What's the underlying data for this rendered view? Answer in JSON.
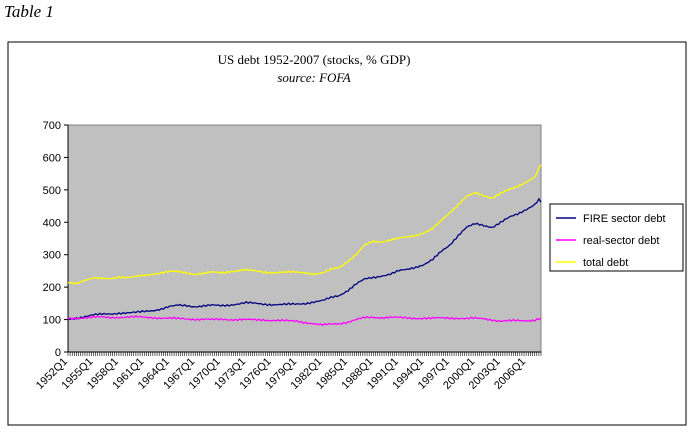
{
  "caption": "Table 1",
  "chart_data": {
    "type": "line",
    "title": "US debt 1952-2007 (stocks, % GDP)",
    "subtitle": "source: FOFA",
    "xlabel": "",
    "ylabel": "",
    "ylim": [
      0,
      700
    ],
    "yticks": [
      0,
      100,
      200,
      300,
      400,
      500,
      600,
      700
    ],
    "xlim": [
      1952.0,
      2007.75
    ],
    "xtick_labels": [
      "1952Q1",
      "1955Q1",
      "1958Q1",
      "1961Q1",
      "1964Q1",
      "1967Q1",
      "1970Q1",
      "1973Q1",
      "1976Q1",
      "1979Q1",
      "1982Q1",
      "1985Q1",
      "1988Q1",
      "1991Q1",
      "1994Q1",
      "1997Q1",
      "2000Q1",
      "2003Q1",
      "2006Q1"
    ],
    "grid": false,
    "legend_position": "right",
    "plot_background": "#c0c0c0",
    "series": [
      {
        "name": "FIRE sector debt",
        "color": "#000080",
        "x": [
          1952,
          1953,
          1954,
          1955,
          1956,
          1957,
          1958,
          1959,
          1960,
          1961,
          1962,
          1963,
          1964,
          1965,
          1966,
          1967,
          1968,
          1969,
          1970,
          1971,
          1972,
          1973,
          1974,
          1975,
          1976,
          1977,
          1978,
          1979,
          1980,
          1981,
          1982,
          1983,
          1984,
          1985,
          1986,
          1987,
          1988,
          1989,
          1990,
          1991,
          1992,
          1993,
          1994,
          1995,
          1996,
          1997,
          1998,
          1999,
          2000,
          2001,
          2002,
          2003,
          2004,
          2005,
          2006,
          2007,
          2007.5,
          2007.75
        ],
        "y": [
          100,
          104,
          110,
          115,
          116,
          117,
          120,
          121,
          122,
          125,
          128,
          133,
          140,
          144,
          143,
          140,
          142,
          144,
          143,
          145,
          148,
          152,
          150,
          148,
          146,
          146,
          147,
          148,
          150,
          154,
          158,
          168,
          175,
          190,
          210,
          225,
          230,
          235,
          240,
          250,
          255,
          262,
          270,
          285,
          310,
          330,
          360,
          385,
          395,
          390,
          385,
          400,
          415,
          425,
          440,
          455,
          470,
          462
        ]
      },
      {
        "name": "real-sector debt",
        "color": "#ff00ff",
        "x": [
          1952,
          1953,
          1954,
          1955,
          1956,
          1957,
          1958,
          1959,
          1960,
          1961,
          1962,
          1963,
          1964,
          1965,
          1966,
          1967,
          1968,
          1969,
          1970,
          1971,
          1972,
          1973,
          1974,
          1975,
          1976,
          1977,
          1978,
          1979,
          1980,
          1981,
          1982,
          1983,
          1984,
          1985,
          1986,
          1987,
          1988,
          1989,
          1990,
          1991,
          1992,
          1993,
          1994,
          1995,
          1996,
          1997,
          1998,
          1999,
          2000,
          2001,
          2002,
          2003,
          2004,
          2005,
          2006,
          2007,
          2007.5,
          2007.75
        ],
        "y": [
          102,
          104,
          106,
          108,
          107,
          106,
          107,
          108,
          108,
          107,
          106,
          105,
          104,
          103,
          102,
          101,
          101,
          100,
          101,
          100,
          100,
          100,
          99,
          99,
          98,
          97,
          96,
          95,
          91,
          87,
          83,
          86,
          88,
          92,
          100,
          106,
          107,
          106,
          107,
          106,
          105,
          104,
          104,
          104,
          105,
          105,
          104,
          103,
          104,
          103,
          99,
          95,
          96,
          97,
          97,
          98,
          102,
          105
        ]
      },
      {
        "name": "total debt",
        "color": "#ffff00",
        "x": [
          1952,
          1953,
          1954,
          1955,
          1956,
          1957,
          1958,
          1959,
          1960,
          1961,
          1962,
          1963,
          1964,
          1965,
          1966,
          1967,
          1968,
          1969,
          1970,
          1971,
          1972,
          1973,
          1974,
          1975,
          1976,
          1977,
          1978,
          1979,
          1980,
          1981,
          1982,
          1983,
          1984,
          1985,
          1986,
          1987,
          1988,
          1989,
          1990,
          1991,
          1992,
          1993,
          1994,
          1995,
          1996,
          1997,
          1998,
          1999,
          2000,
          2001,
          2002,
          2003,
          2004,
          2005,
          2006,
          2007,
          2007.5,
          2007.75
        ],
        "y": [
          213,
          212,
          222,
          228,
          226,
          226,
          232,
          230,
          232,
          236,
          240,
          245,
          248,
          247,
          244,
          240,
          243,
          246,
          244,
          248,
          251,
          253,
          250,
          247,
          245,
          245,
          246,
          247,
          245,
          240,
          243,
          255,
          262,
          280,
          300,
          330,
          342,
          340,
          345,
          350,
          355,
          360,
          368,
          380,
          405,
          430,
          455,
          480,
          490,
          482,
          475,
          490,
          500,
          510,
          525,
          540,
          565,
          577
        ]
      }
    ]
  }
}
